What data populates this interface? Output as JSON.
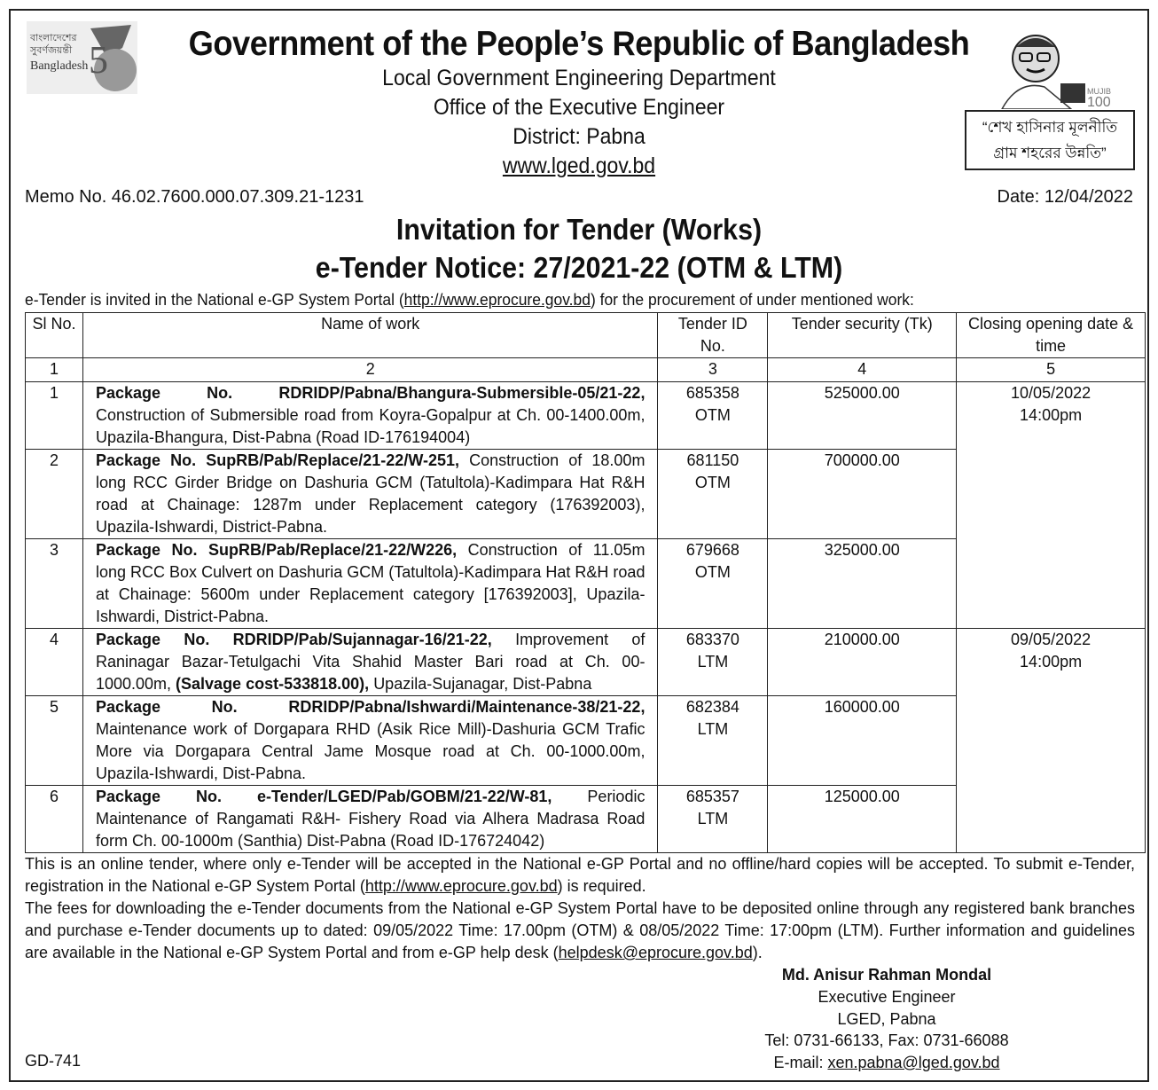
{
  "header": {
    "title": "Government of the People’s Republic of Bangladesh",
    "lines": [
      "Local Government Engineering Department",
      "Office of the Executive Engineer",
      "District: Pabna"
    ],
    "website": "www.lged.gov.bd",
    "logo_left_text": "বাংলাদেশের সুবর্ণজয়ন্তী Bangladesh 50",
    "logo_right_text": "মুজিব শতবর্ষ MUJIB 100",
    "quote": [
      "“শেখ হাসিনার মূলনীতি",
      "গ্রাম শহরের উন্নতি”"
    ]
  },
  "memo": "Memo No. 46.02.7600.000.07.309.21-1231",
  "date": "Date: 12/04/2022",
  "heading1": "Invitation for Tender (Works)",
  "heading2": "e-Tender Notice: 27/2021-22 (OTM & LTM)",
  "intro": {
    "before": "e-Tender is invited in the National e-GP System Portal (",
    "link": "http://www.eprocure.gov.bd",
    "after": ") for the procurement of under mentioned work:"
  },
  "table": {
    "headers": [
      "Sl No.",
      "Name of work",
      "Tender ID No.",
      "Tender security (Tk)",
      "Closing opening date & time"
    ],
    "numbers": [
      "1",
      "2",
      "3",
      "4",
      "5"
    ],
    "rows": [
      {
        "sl": "1",
        "package": "Package No. RDRIDP/Pabna/Bhangura-Submersible-05/21-22,",
        "desc": "Construction of Submersible road from Koyra-Gopalpur at Ch. 00-1400.00m, Upazila-Bhangura, Dist-Pabna (Road ID-176194004)",
        "id": "685358",
        "method": "OTM",
        "security": "525000.00"
      },
      {
        "sl": "2",
        "package": "Package No. SupRB/Pab/Replace/21-22/W-251,",
        "desc": "Construction of 18.00m long RCC Girder Bridge on Dashuria GCM (Tatultola)-Kadimpara Hat R&H road at Chainage: 1287m under Replacement category (176392003), Upazila-Ishwardi, District-Pabna.",
        "id": "681150",
        "method": "OTM",
        "security": "700000.00"
      },
      {
        "sl": "3",
        "package": "Package No. SupRB/Pab/Replace/21-22/W226,",
        "desc": "Construction of 11.05m long RCC Box Culvert on Dashuria GCM (Tatultola)-Kadimpara Hat R&H road at Chainage: 5600m under Replacement category [176392003], Upazila-Ishwardi, District-Pabna.",
        "id": "679668",
        "method": "OTM",
        "security": "325000.00"
      },
      {
        "sl": "4",
        "package": "Package No. RDRIDP/Pab/Sujannagar-16/21-22,",
        "desc": "Improvement of Raninagar Bazar-Tetulgachi Vita Shahid Master Bari road at Ch. 00-1000.00m,",
        "bold2": "(Salvage cost-533818.00),",
        "desc2": "Upazila-Sujanagar, Dist-Pabna",
        "id": "683370",
        "method": "LTM",
        "security": "210000.00"
      },
      {
        "sl": "5",
        "package": "Package No. RDRIDP/Pabna/Ishwardi/Maintenance-38/21-22,",
        "desc": "Maintenance work of Dorgapara RHD (Asik Rice Mill)-Dashuria GCM Trafic More via Dorgapara Central Jame Mosque road at Ch. 00-1000.00m, Upazila-Ishwardi, Dist-Pabna.",
        "id": "682384",
        "method": "LTM",
        "security": "160000.00"
      },
      {
        "sl": "6",
        "package": "Package No. e-Tender/LGED/Pab/GOBM/21-22/W-81,",
        "desc": "Periodic Maintenance of Rangamati R&H- Fishery Road via Alhera Madrasa Road form Ch. 00-1000m (Santhia) Dist-Pabna (Road ID-176724042)",
        "id": "685357",
        "method": "LTM",
        "security": "125000.00"
      }
    ],
    "closing": [
      {
        "date": "10/05/2022",
        "time": "14:00pm"
      },
      {
        "date": "09/05/2022",
        "time": "14:00pm"
      }
    ]
  },
  "footer": {
    "p1a": "This is an online tender, where only e-Tender will be accepted in the National e-GP Portal and no offline/hard copies will be accepted. To submit e-Tender, registration in the National e-GP System Portal (",
    "p1link": "http://www.eprocure.gov.bd",
    "p1b": ") is required.",
    "p2a": "The fees for downloading the e-Tender documents from the National e-GP System Portal have to be deposited online through any registered bank branches and purchase e-Tender documents up to dated: 09/05/2022 Time: 17.00pm (OTM) & 08/05/2022 Time: 17:00pm (LTM). Further information and guidelines are available in the National e-GP System Portal and from e-GP help desk (",
    "p2link": "helpdesk@eprocure.gov.bd",
    "p2b": ")."
  },
  "signature": {
    "name": "Md. Anisur Rahman Mondal",
    "title": "Executive Engineer",
    "office": "LGED, Pabna",
    "phone": "Tel: 0731-66133, Fax: 0731-66088",
    "email_label": "E-mail: ",
    "email": "xen.pabna@lged.gov.bd"
  },
  "code": "GD-741"
}
